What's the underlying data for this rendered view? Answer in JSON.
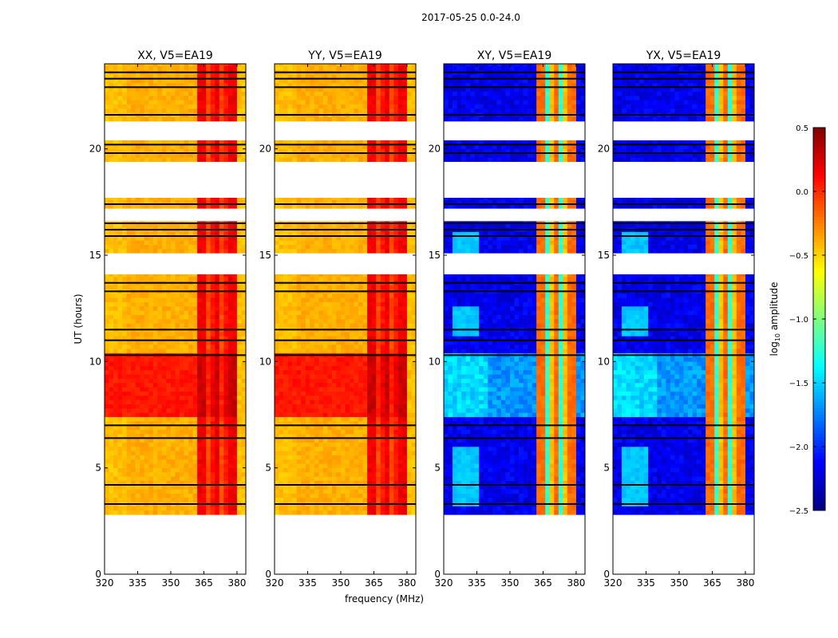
{
  "chart_data": {
    "type": "heatmap",
    "suptitle": "2017-05-25 0.0-24.0",
    "xlabel": "frequency (MHz)",
    "ylabel": "UT (hours)",
    "xlim": [
      320,
      384
    ],
    "ylim": [
      0,
      24
    ],
    "xticks": [
      "320",
      "335",
      "350",
      "365",
      "380"
    ],
    "yticks": [
      "0",
      "5",
      "10",
      "15",
      "20"
    ],
    "panels": [
      {
        "title": "XX, V5=EA19",
        "kind": "parallel"
      },
      {
        "title": "YY, V5=EA19",
        "kind": "parallel"
      },
      {
        "title": "XY, V5=EA19",
        "kind": "cross"
      },
      {
        "title": "YX, V5=EA19",
        "kind": "cross"
      }
    ],
    "data_segments_hours": [
      [
        2.8,
        14.1
      ],
      [
        15.1,
        16.6
      ],
      [
        17.2,
        17.7
      ],
      [
        19.4,
        20.4
      ],
      [
        21.3,
        24.0
      ]
    ],
    "flagged_hours": [
      3.3,
      4.2,
      6.4,
      7.0,
      10.3,
      11.0,
      11.5,
      13.3,
      13.7,
      15.9,
      16.2,
      16.5,
      17.4,
      19.8,
      20.2,
      21.6,
      22.9,
      23.3,
      23.6
    ],
    "levels_log10": {
      "parallel_base": -0.45,
      "parallel_band_362_380": -0.05,
      "parallel_7_10h": 0.0,
      "cross_base": -2.3,
      "cross_band_362_380": -0.6,
      "cross_7_10h": -1.8
    },
    "colorbar": {
      "label": "log10 amplitude",
      "label_main": "log",
      "label_sub": "10",
      "label_rest": " amplitude",
      "range": [
        -2.5,
        0.5
      ],
      "ticks": [
        "0.5",
        "0.0",
        "−0.5",
        "−1.0",
        "−1.5",
        "−2.0",
        "−2.5"
      ],
      "colormap": "jet"
    }
  }
}
